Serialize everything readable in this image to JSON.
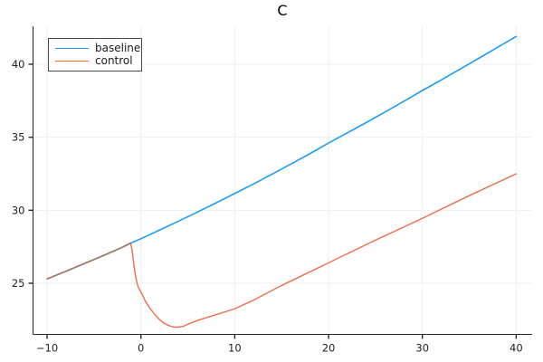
{
  "chart_data": {
    "type": "line",
    "title": "C",
    "xlabel": "",
    "ylabel": "",
    "xlim": [
      -11.5,
      41.7
    ],
    "ylim": [
      21.5,
      42.6
    ],
    "xticks": [
      -10,
      0,
      10,
      20,
      30,
      40
    ],
    "xtick_labels": [
      "−10",
      "0",
      "10",
      "20",
      "30",
      "40"
    ],
    "yticks": [
      25,
      30,
      35,
      40
    ],
    "ytick_labels": [
      "25",
      "30",
      "35",
      "40"
    ],
    "grid": true,
    "legend_position": "top-left",
    "background_color": "#ffffff",
    "grid_color": "#efefef",
    "axis_color": "#2a2a2a",
    "tick_label_color": "#1f1f1f",
    "series": [
      {
        "name": "baseline",
        "color": "#1c9ef4",
        "x": [
          -10,
          -8,
          -6,
          -4,
          -2,
          -1.1,
          0,
          2,
          4,
          6,
          8,
          10,
          12,
          14,
          16,
          18,
          20,
          22,
          24,
          26,
          28,
          30,
          32,
          34,
          36,
          38,
          40
        ],
        "y": [
          25.3,
          25.82,
          26.36,
          26.9,
          27.46,
          27.75,
          28.05,
          28.65,
          29.25,
          29.87,
          30.5,
          31.15,
          31.8,
          32.48,
          33.17,
          33.87,
          34.6,
          35.3,
          36.0,
          36.72,
          37.45,
          38.2,
          38.92,
          39.66,
          40.4,
          41.15,
          41.9
        ]
      },
      {
        "name": "control",
        "color": "#ec6f4c",
        "x": [
          -10,
          -8,
          -6,
          -4,
          -2,
          -1.1,
          -0.95,
          -0.8,
          -0.65,
          -0.5,
          -0.3,
          0,
          0.5,
          1,
          1.5,
          2,
          2.5,
          3,
          3.5,
          4,
          4.5,
          5,
          6,
          7,
          8,
          9,
          10,
          12,
          15,
          20,
          25,
          30,
          35,
          40
        ],
        "y": [
          25.3,
          25.82,
          26.36,
          26.9,
          27.46,
          27.75,
          27.3,
          26.5,
          25.8,
          25.25,
          24.75,
          24.4,
          23.75,
          23.25,
          22.85,
          22.5,
          22.25,
          22.1,
          22.0,
          22.0,
          22.05,
          22.2,
          22.45,
          22.65,
          22.85,
          23.05,
          23.25,
          23.85,
          24.85,
          26.4,
          27.95,
          29.45,
          31.0,
          32.5
        ]
      }
    ],
    "overlap_segment": {
      "x_end": -1.1,
      "color": "#a5766b",
      "note": "baseline and control coincide left of split point"
    }
  }
}
